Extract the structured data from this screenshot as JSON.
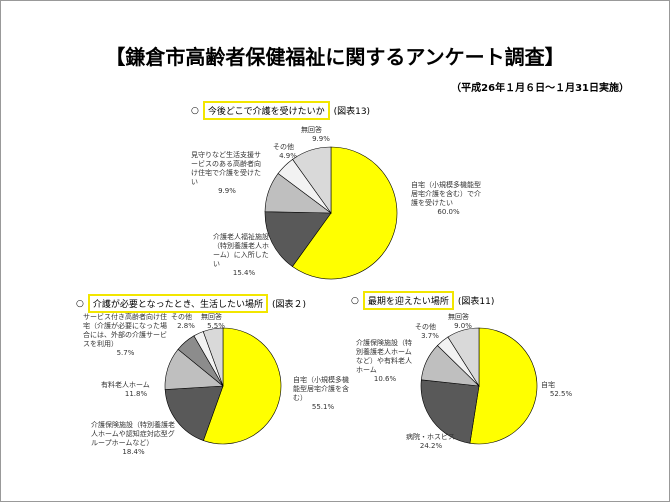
{
  "header": {
    "title": "【鎌倉市高齢者保健福祉に関するアンケート調査】",
    "subtitle": "（平成26年１月６日～１月31日実施）"
  },
  "chart_data": [
    {
      "type": "pie",
      "title": "今後どこで介護を受けたいか",
      "figure_label": "(図表13)",
      "categories": [
        "自宅（小規模多機能型居宅介護を含む）で介護を受けたい",
        "介護老人福祉施設（特別養護老人ホーム）に入所したい",
        "見守りなど生活支援サービスのある高齢者向け住宅で介護を受けたい",
        "その他",
        "無回答"
      ],
      "values": [
        60.0,
        15.4,
        9.9,
        4.9,
        9.9
      ],
      "value_labels": [
        "60.0%",
        "15.4%",
        "9.9%",
        "4.9%",
        "9.9%"
      ],
      "colors": [
        "#ffff00",
        "#595959",
        "#bfbfbf",
        "#f2f2f2",
        "#d9d9d9"
      ]
    },
    {
      "type": "pie",
      "title": "介護が必要となったとき、生活したい場所",
      "figure_label": "(図表２)",
      "categories": [
        "自宅（小規模多機能型居宅介護を含む）",
        "介護保険施設（特別養護老人ホームや認知症対応型グループホームなど）",
        "有料老人ホーム",
        "サービス付き高齢者向け住宅（介護が必要になった場合には、外部の介護サービスを利用）",
        "その他",
        "無回答"
      ],
      "values": [
        55.1,
        18.4,
        11.8,
        5.7,
        2.8,
        5.5
      ],
      "value_labels": [
        "55.1%",
        "18.4%",
        "11.8%",
        "5.7%",
        "2.8%",
        "5.5%"
      ],
      "colors": [
        "#ffff00",
        "#595959",
        "#bfbfbf",
        "#8c8c8c",
        "#f2f2f2",
        "#d9d9d9"
      ]
    },
    {
      "type": "pie",
      "title": "最期を迎えたい場所",
      "figure_label": "(図表11)",
      "categories": [
        "自宅",
        "病院・ホスピス",
        "介護保険施設（特別養護老人ホームなど）や有料老人ホーム",
        "その他",
        "無回答"
      ],
      "values": [
        52.5,
        24.2,
        10.6,
        3.7,
        9.0
      ],
      "value_labels": [
        "52.5%",
        "24.2%",
        "10.6%",
        "3.7%",
        "9.0%"
      ],
      "colors": [
        "#ffff00",
        "#595959",
        "#bfbfbf",
        "#f2f2f2",
        "#d9d9d9"
      ]
    }
  ]
}
